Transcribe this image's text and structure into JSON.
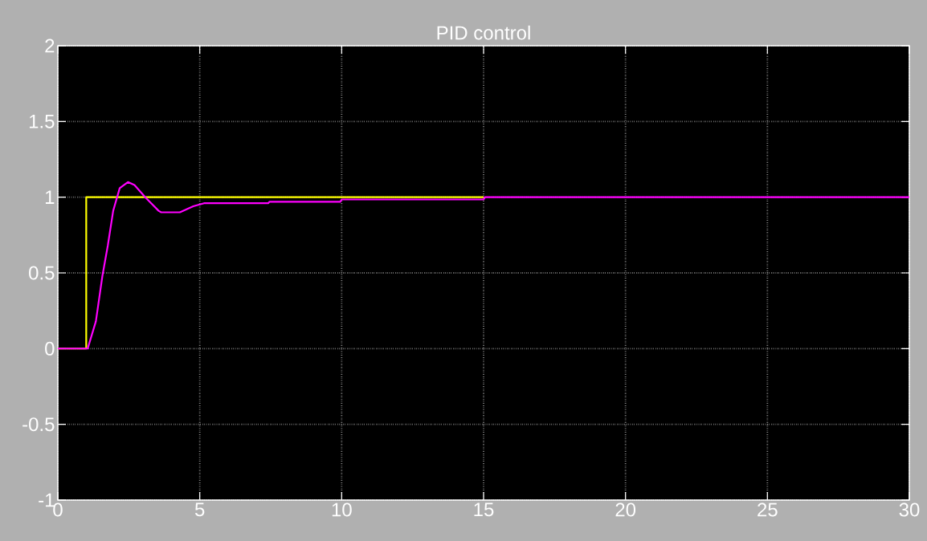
{
  "chart_data": {
    "type": "line",
    "title": "PID control",
    "series": [
      {
        "color": "#ffff00",
        "x": [
          0,
          1,
          1,
          15
        ],
        "values": [
          0,
          0,
          1,
          1
        ]
      },
      {
        "color": "#ff00ff",
        "x": [
          0,
          1.05,
          1.34,
          1.57,
          1.76,
          1.95,
          2.18,
          2.47,
          2.7,
          3.08,
          3.55,
          3.64,
          4.3,
          4.77,
          5.15,
          7.41,
          7.46,
          9.95,
          10,
          15,
          15.05,
          30
        ],
        "values": [
          0,
          0,
          0.18,
          0.48,
          0.68,
          0.91,
          1.06,
          1.1,
          1.08,
          1.0,
          0.91,
          0.9,
          0.9,
          0.94,
          0.96,
          0.96,
          0.97,
          0.97,
          0.985,
          0.985,
          1,
          1
        ]
      }
    ],
    "xlim": [
      0,
      30
    ],
    "ylim": [
      -1,
      2
    ],
    "xticks": [
      0,
      5,
      10,
      15,
      20,
      25,
      30
    ],
    "yticks": [
      -1,
      -0.5,
      0,
      0.5,
      1,
      1.5,
      2
    ],
    "grid": true,
    "line_style": "solid",
    "marker": "none"
  }
}
